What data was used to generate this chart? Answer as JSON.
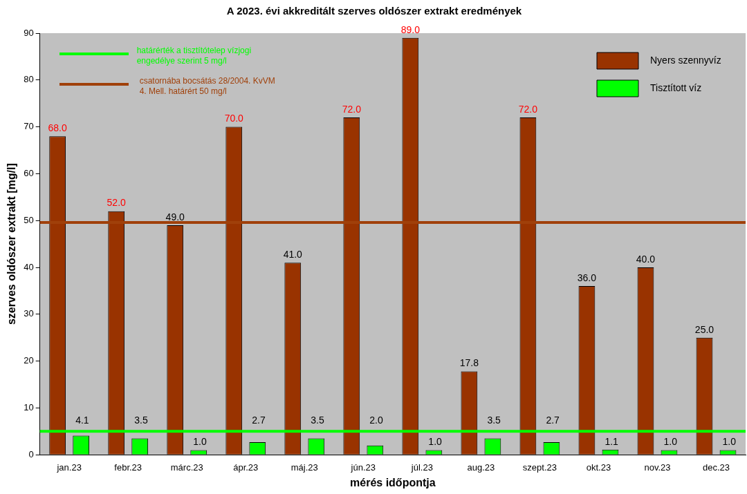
{
  "chart_data": {
    "type": "bar",
    "title": "A 2023. évi akkreditált szerves oldószer extrakt eredmények",
    "xlabel": "mérés időpontja",
    "ylabel": "szerves oldószer extrakt [mg/l]",
    "categories": [
      "jan.23",
      "febr.23",
      "márc.23",
      "ápr.23",
      "máj.23",
      "jún.23",
      "júl.23",
      "aug.23",
      "szept.23",
      "okt.23",
      "nov.23",
      "dec.23"
    ],
    "series": [
      {
        "name": "Nyers szennyvíz",
        "color": "#993300",
        "values": [
          68,
          52,
          49,
          70,
          41,
          72,
          89,
          17.8,
          72,
          36,
          40,
          25
        ],
        "value_labels": [
          "68.0",
          "52.0",
          "49.0",
          "70.0",
          "41.0",
          "72.0",
          "89.0",
          "17.8",
          "72.0",
          "36.0",
          "40.0",
          "25.0"
        ]
      },
      {
        "name": "Tisztított víz",
        "color": "#00ff00",
        "values": [
          4.1,
          3.5,
          1,
          2.7,
          3.5,
          2,
          1,
          3.5,
          2.7,
          1.1,
          1,
          1
        ],
        "value_labels": [
          "4.1",
          "3.5",
          "1.0",
          "2.7",
          "3.5",
          "2.0",
          "1.0",
          "3.5",
          "2.7",
          "1.1",
          "1.0",
          "1.0"
        ]
      }
    ],
    "ylim": [
      0,
      90
    ],
    "yticks": [
      0,
      10,
      20,
      30,
      40,
      50,
      60,
      70,
      80,
      90
    ],
    "ref_lines": [
      {
        "axis": "y",
        "value": 5,
        "label": "határérték a tisztítótelep vízjogi engedélye szerint 5 mg/l",
        "color": "#00ff00"
      },
      {
        "axis": "y",
        "value": 49.6,
        "label": "csatornába bocsátás 28/2004. KvVM 4. Mell. határért 50 mg/l",
        "color": "#a0400a"
      }
    ],
    "legend": "top right",
    "grid": false
  }
}
